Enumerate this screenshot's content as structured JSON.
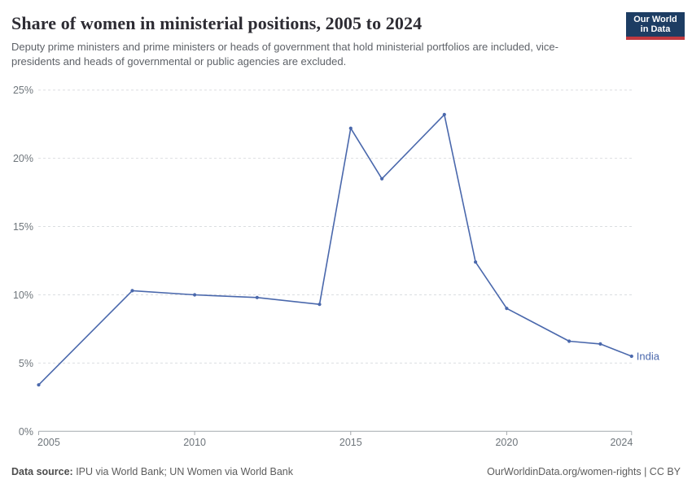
{
  "header": {
    "title": "Share of women in ministerial positions, 2005 to 2024",
    "subtitle": "Deputy prime ministers and prime ministers or heads of government that hold ministerial portfolios are included, vice-presidents and heads of governmental or public agencies are excluded.",
    "logo": {
      "line1": "Our World",
      "line2": "in Data",
      "bg_color": "#1d3d63",
      "accent_color": "#c0393f"
    }
  },
  "chart_data": {
    "type": "line",
    "title": "Share of women in ministerial positions, 2005 to 2024",
    "series": [
      {
        "name": "India",
        "color": "#4a68ac",
        "points": [
          [
            2005,
            3.4
          ],
          [
            2008,
            10.3
          ],
          [
            2010,
            10.0
          ],
          [
            2012,
            9.8
          ],
          [
            2014,
            9.3
          ],
          [
            2015,
            22.2
          ],
          [
            2016,
            18.5
          ],
          [
            2018,
            23.2
          ],
          [
            2019,
            12.4
          ],
          [
            2020,
            9.0
          ],
          [
            2022,
            6.6
          ],
          [
            2023,
            6.4
          ],
          [
            2024,
            5.5
          ]
        ]
      }
    ],
    "xlabel": "",
    "ylabel": "",
    "xticks": [
      2005,
      2010,
      2015,
      2020,
      2024
    ],
    "yticks": [
      0,
      5,
      10,
      15,
      20,
      25
    ],
    "ytick_suffix": "%",
    "xlim": [
      2005,
      2024
    ],
    "ylim": [
      0,
      25
    ],
    "grid": "horizontal-dashed",
    "legend": "line-end-label",
    "colors": {
      "line": "#4a68ac",
      "grid": "#dbdee1",
      "axis": "#a4a9ad",
      "tick_text": "#6e757b"
    }
  },
  "footer": {
    "datasource_label": "Data source:",
    "datasource_value": " IPU via World Bank; UN Women via World Bank",
    "link": "OurWorldinData.org/women-rights | CC BY"
  }
}
